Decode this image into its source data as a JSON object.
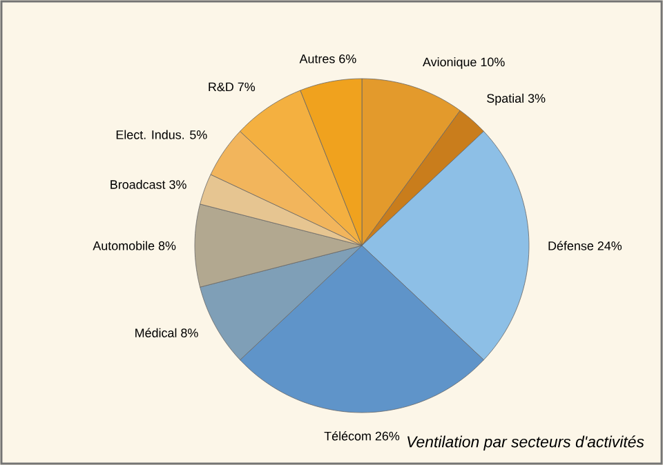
{
  "chart_data": {
    "type": "pie",
    "title": "Ventilation par secteurs d'activités",
    "categories": [
      "Avionique",
      "Spatial",
      "Défense",
      "Télécom",
      "Médical",
      "Automobile",
      "Broadcast",
      "Elect. Indus.",
      "R&D",
      "Autres"
    ],
    "values": [
      10,
      3,
      24,
      26,
      8,
      8,
      3,
      5,
      7,
      6
    ],
    "value_labels": [
      "10%",
      "3%",
      "24%",
      "26%",
      "8%",
      "8%",
      "3%",
      "5%",
      "7%",
      "6%"
    ],
    "colors": [
      "#e39a2c",
      "#c97d1c",
      "#8dbfe6",
      "#5f94c9",
      "#7f9fb7",
      "#b2a890",
      "#e6c591",
      "#f2b55c",
      "#f4b040",
      "#f0a21e"
    ]
  }
}
